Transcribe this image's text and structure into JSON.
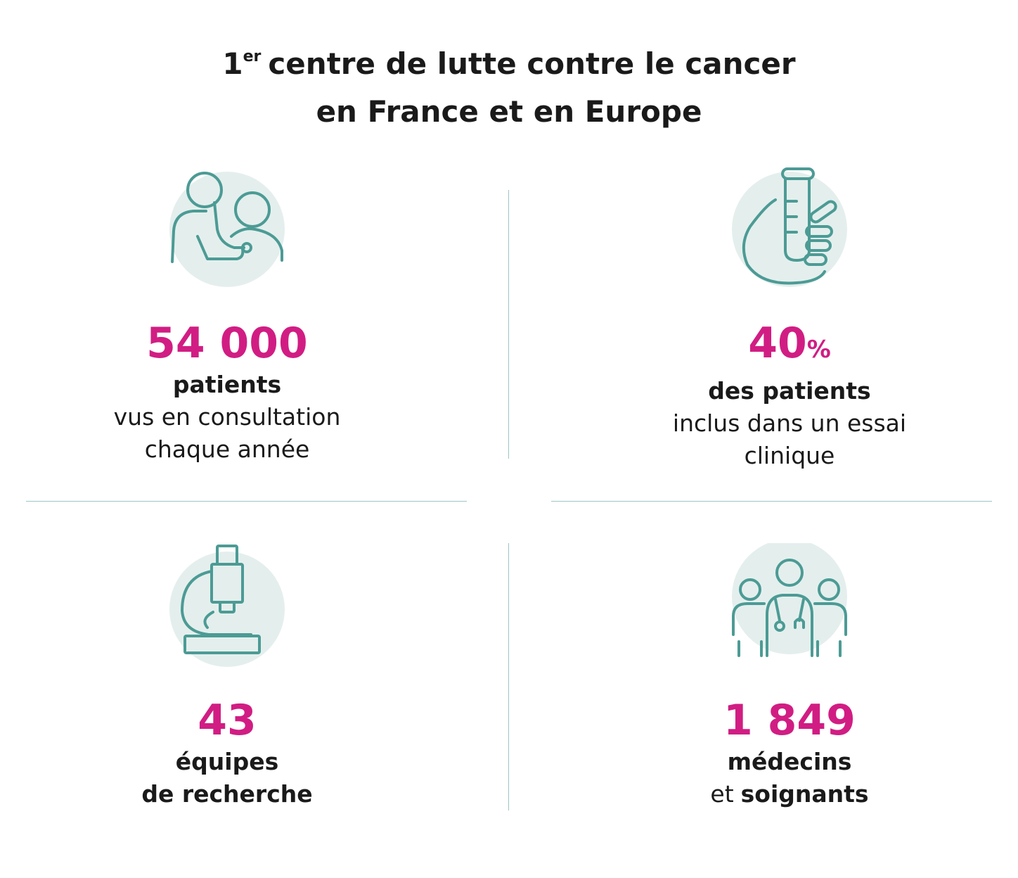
{
  "header": {
    "title_number": "1",
    "title_sup": "er",
    "title_line1": "centre de lutte contre le cancer",
    "title_line2": "en France et en Europe"
  },
  "stats": [
    {
      "figure": "54 000",
      "lines": [
        [
          {
            "text": "patients",
            "bold": true
          }
        ],
        [
          {
            "text": "vus en consultation",
            "bold": false
          }
        ],
        [
          {
            "text": "chaque année",
            "bold": false
          }
        ]
      ]
    },
    {
      "figure": "40",
      "unit": "%",
      "lines": [
        [
          {
            "text": "des patients",
            "bold": true
          }
        ],
        [
          {
            "text": "inclus dans un essai",
            "bold": false
          }
        ],
        [
          {
            "text": "clinique",
            "bold": false
          }
        ]
      ]
    },
    {
      "figure": "43",
      "lines": [
        [
          {
            "text": "équipes",
            "bold": true
          }
        ],
        [
          {
            "text": "de recherche",
            "bold": true
          }
        ]
      ]
    },
    {
      "figure": "1 849",
      "lines": [
        [
          {
            "text": "médecins",
            "bold": true
          }
        ],
        [
          {
            "text": "et",
            "bold": false
          },
          {
            "text": "soignants",
            "bold": true
          }
        ]
      ]
    }
  ]
}
